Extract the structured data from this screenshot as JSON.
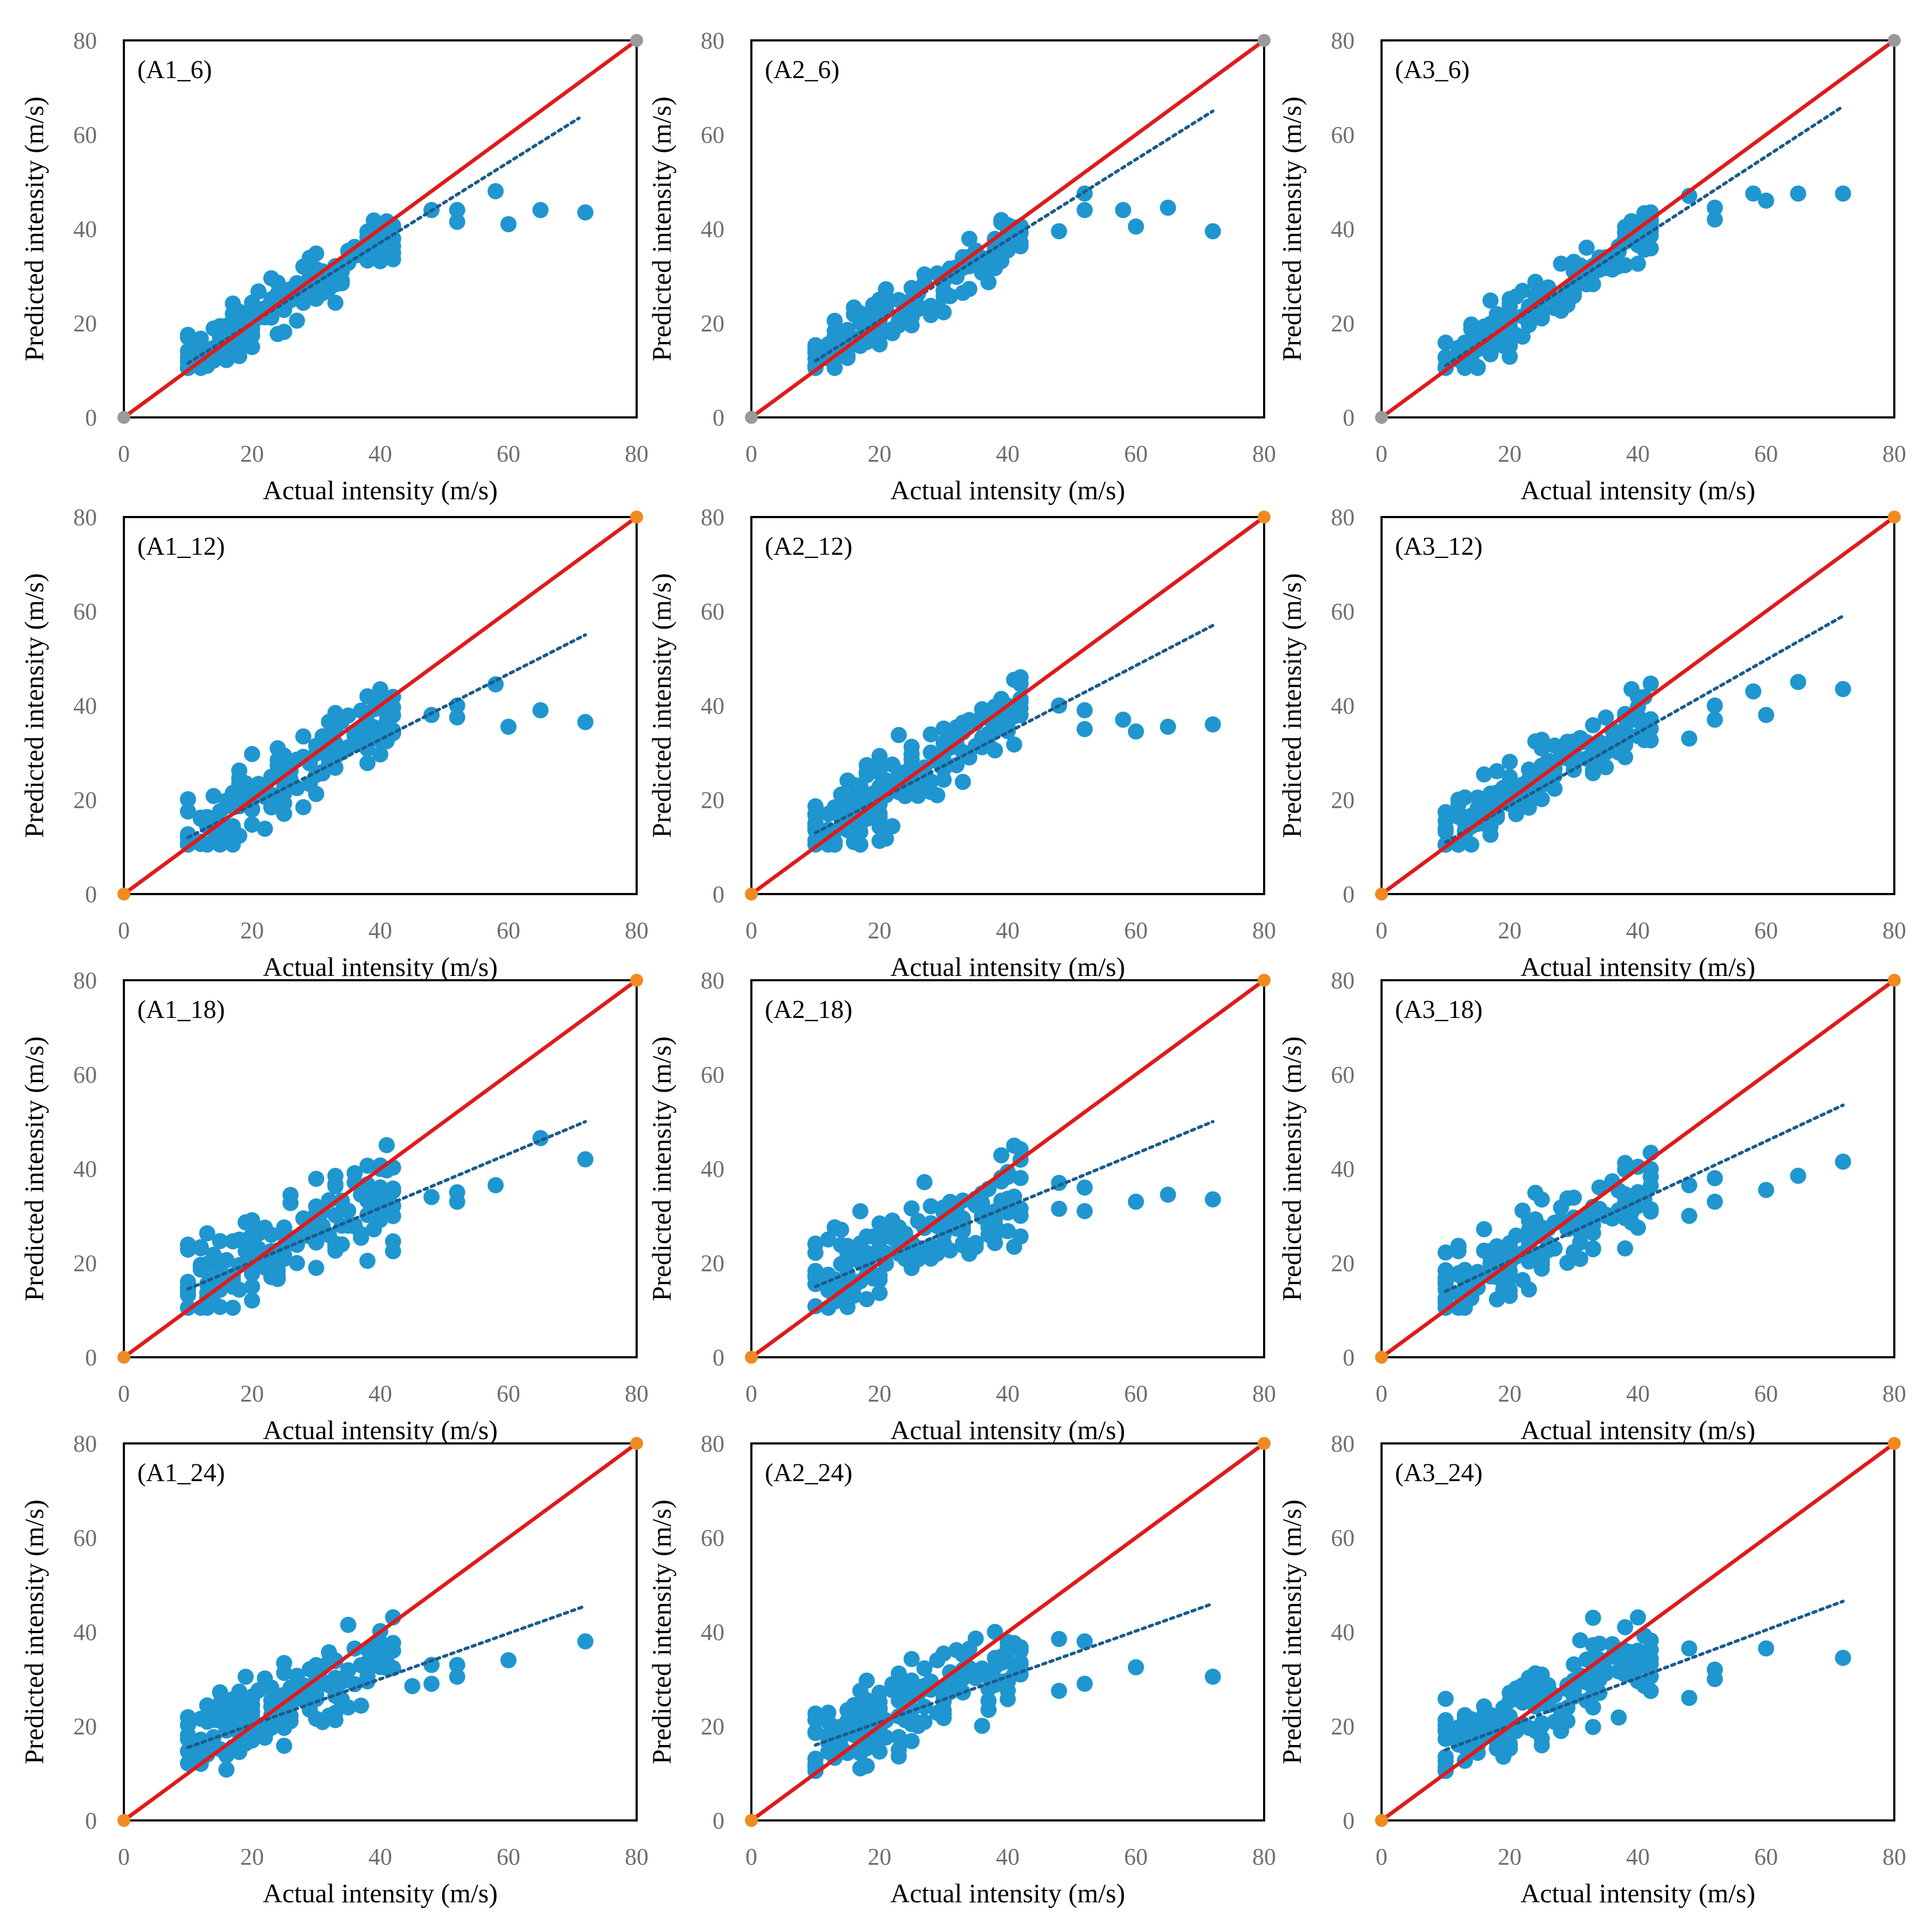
{
  "figure": {
    "colors": {
      "points": "#1f96d0",
      "trend": "#1b5c8c",
      "identity": "#e01a1a",
      "endpoint_gray": "#9a9a9a",
      "endpoint_orange": "#f08a20",
      "frame": "#000000"
    }
  },
  "chart_data": [
    {
      "type": "scatter",
      "title": "(A1_6)",
      "xlabel": "Actual intensity (m/s)",
      "ylabel": "Predicted intensity (m/s)",
      "xlim": [
        0,
        80
      ],
      "ylim": [
        0,
        80
      ],
      "xticks": [
        "0",
        "20",
        "40",
        "60",
        "80"
      ],
      "yticks": [
        "0",
        "20",
        "40",
        "60",
        "80"
      ],
      "grid": false,
      "marker_color": "gray",
      "identity_line": [
        [
          0,
          0
        ],
        [
          80,
          80
        ]
      ],
      "trend_line": [
        [
          10,
          11.5
        ],
        [
          71,
          63.5
        ]
      ],
      "bulk_slope": 0.85,
      "bulk_intercept": 3.0,
      "bulk_spread": 3.0,
      "outliers": [
        [
          58,
          48
        ],
        [
          60,
          41
        ],
        [
          65,
          44
        ],
        [
          72,
          43.5
        ],
        [
          52,
          44
        ],
        [
          52,
          41.5
        ],
        [
          48,
          44
        ]
      ]
    },
    {
      "type": "scatter",
      "title": "(A2_6)",
      "xlabel": "Actual intensity (m/s)",
      "ylabel": "Predicted intensity (m/s)",
      "xlim": [
        0,
        80
      ],
      "ylim": [
        0,
        80
      ],
      "xticks": [
        "0",
        "20",
        "40",
        "60",
        "80"
      ],
      "yticks": [
        "0",
        "20",
        "40",
        "60",
        "80"
      ],
      "grid": false,
      "marker_color": "gray",
      "identity_line": [
        [
          0,
          0
        ],
        [
          80,
          80
        ]
      ],
      "trend_line": [
        [
          10,
          12
        ],
        [
          72,
          65
        ]
      ],
      "bulk_slope": 0.85,
      "bulk_intercept": 3.0,
      "bulk_spread": 2.8,
      "outliers": [
        [
          58,
          44
        ],
        [
          60,
          40.5
        ],
        [
          65,
          44.5
        ],
        [
          72,
          39.5
        ],
        [
          52,
          44
        ],
        [
          52,
          47.5
        ],
        [
          48,
          39.5
        ]
      ]
    },
    {
      "type": "scatter",
      "title": "(A3_6)",
      "xlabel": "Actual intensity (m/s)",
      "ylabel": "Predicted intensity (m/s)",
      "xlim": [
        0,
        80
      ],
      "ylim": [
        0,
        80
      ],
      "xticks": [
        "0",
        "20",
        "40",
        "60",
        "80"
      ],
      "yticks": [
        "0",
        "20",
        "40",
        "60",
        "80"
      ],
      "grid": false,
      "marker_color": "gray",
      "identity_line": [
        [
          0,
          0
        ],
        [
          80,
          80
        ]
      ],
      "trend_line": [
        [
          10,
          11
        ],
        [
          72,
          66
        ]
      ],
      "bulk_slope": 0.88,
      "bulk_intercept": 2.5,
      "bulk_spread": 2.8,
      "outliers": [
        [
          58,
          47.5
        ],
        [
          60,
          46
        ],
        [
          65,
          47.5
        ],
        [
          72,
          47.5
        ],
        [
          52,
          42
        ],
        [
          52,
          44.5
        ],
        [
          48,
          47
        ]
      ]
    },
    {
      "type": "scatter",
      "title": "(A1_12)",
      "xlabel": "Actual intensity (m/s)",
      "ylabel": "Predicted intensity (m/s)",
      "xlim": [
        0,
        80
      ],
      "ylim": [
        0,
        80
      ],
      "xticks": [
        "0",
        "20",
        "40",
        "60",
        "80"
      ],
      "yticks": [
        "0",
        "20",
        "40",
        "60",
        "80"
      ],
      "grid": false,
      "marker_color": "orange",
      "identity_line": [
        [
          0,
          0
        ],
        [
          80,
          80
        ]
      ],
      "trend_line": [
        [
          10,
          12
        ],
        [
          72,
          55
        ]
      ],
      "bulk_slope": 0.82,
      "bulk_intercept": 4.0,
      "bulk_spread": 4.0,
      "outliers": [
        [
          58,
          44.5
        ],
        [
          60,
          35.5
        ],
        [
          65,
          39
        ],
        [
          72,
          36.5
        ],
        [
          52,
          40
        ],
        [
          52,
          37.5
        ],
        [
          48,
          38
        ]
      ]
    },
    {
      "type": "scatter",
      "title": "(A2_12)",
      "xlabel": "Actual intensity (m/s)",
      "ylabel": "Predicted intensity (m/s)",
      "xlim": [
        0,
        80
      ],
      "ylim": [
        0,
        80
      ],
      "xticks": [
        "0",
        "20",
        "40",
        "60",
        "80"
      ],
      "yticks": [
        "0",
        "20",
        "40",
        "60",
        "80"
      ],
      "grid": false,
      "marker_color": "orange",
      "identity_line": [
        [
          0,
          0
        ],
        [
          80,
          80
        ]
      ],
      "trend_line": [
        [
          10,
          13
        ],
        [
          72,
          57
        ]
      ],
      "bulk_slope": 0.8,
      "bulk_intercept": 5.0,
      "bulk_spread": 4.0,
      "outliers": [
        [
          58,
          37
        ],
        [
          60,
          34.5
        ],
        [
          65,
          35.5
        ],
        [
          72,
          36
        ],
        [
          52,
          39
        ],
        [
          52,
          35
        ],
        [
          48,
          40
        ]
      ]
    },
    {
      "type": "scatter",
      "title": "(A3_12)",
      "xlabel": "Actual intensity (m/s)",
      "ylabel": "Predicted intensity (m/s)",
      "xlim": [
        0,
        80
      ],
      "ylim": [
        0,
        80
      ],
      "xticks": [
        "0",
        "20",
        "40",
        "60",
        "80"
      ],
      "yticks": [
        "0",
        "20",
        "40",
        "60",
        "80"
      ],
      "grid": false,
      "marker_color": "orange",
      "identity_line": [
        [
          0,
          0
        ],
        [
          80,
          80
        ]
      ],
      "trend_line": [
        [
          10,
          11
        ],
        [
          72,
          59
        ]
      ],
      "bulk_slope": 0.82,
      "bulk_intercept": 4.0,
      "bulk_spread": 3.6,
      "outliers": [
        [
          58,
          43
        ],
        [
          60,
          38
        ],
        [
          65,
          45
        ],
        [
          72,
          43.5
        ],
        [
          52,
          40
        ],
        [
          52,
          37
        ],
        [
          48,
          33
        ]
      ]
    },
    {
      "type": "scatter",
      "title": "(A1_18)",
      "xlabel": "Actual intensity (m/s)",
      "ylabel": "Predicted intensity (m/s)",
      "xlim": [
        0,
        80
      ],
      "ylim": [
        0,
        80
      ],
      "xticks": [
        "0",
        "20",
        "40",
        "60",
        "80"
      ],
      "yticks": [
        "0",
        "20",
        "40",
        "60",
        "80"
      ],
      "grid": false,
      "marker_color": "orange",
      "identity_line": [
        [
          0,
          0
        ],
        [
          80,
          80
        ]
      ],
      "trend_line": [
        [
          10,
          14.5
        ],
        [
          72,
          50
        ]
      ],
      "bulk_slope": 0.62,
      "bulk_intercept": 9.0,
      "bulk_spread": 4.8,
      "outliers": [
        [
          58,
          36.5
        ],
        [
          65,
          46.5
        ],
        [
          72,
          42
        ],
        [
          52,
          35
        ],
        [
          52,
          33
        ],
        [
          48,
          34
        ],
        [
          42,
          22.5
        ]
      ]
    },
    {
      "type": "scatter",
      "title": "(A2_18)",
      "xlabel": "Actual intensity (m/s)",
      "ylabel": "Predicted intensity (m/s)",
      "xlim": [
        0,
        80
      ],
      "ylim": [
        0,
        80
      ],
      "xticks": [
        "0",
        "20",
        "40",
        "60",
        "80"
      ],
      "yticks": [
        "0",
        "20",
        "40",
        "60",
        "80"
      ],
      "grid": false,
      "marker_color": "orange",
      "identity_line": [
        [
          0,
          0
        ],
        [
          80,
          80
        ]
      ],
      "trend_line": [
        [
          10,
          15
        ],
        [
          72,
          50
        ]
      ],
      "bulk_slope": 0.62,
      "bulk_intercept": 9.5,
      "bulk_spread": 4.5,
      "outliers": [
        [
          60,
          33
        ],
        [
          65,
          34.5
        ],
        [
          72,
          33.5
        ],
        [
          52,
          36
        ],
        [
          52,
          31
        ],
        [
          48,
          37
        ],
        [
          48,
          31.5
        ]
      ]
    },
    {
      "type": "scatter",
      "title": "(A3_18)",
      "xlabel": "Actual intensity (m/s)",
      "ylabel": "Predicted intensity (m/s)",
      "xlim": [
        0,
        80
      ],
      "ylim": [
        0,
        80
      ],
      "xticks": [
        "0",
        "20",
        "40",
        "60",
        "80"
      ],
      "yticks": [
        "0",
        "20",
        "40",
        "60",
        "80"
      ],
      "grid": false,
      "marker_color": "orange",
      "identity_line": [
        [
          0,
          0
        ],
        [
          80,
          80
        ]
      ],
      "trend_line": [
        [
          10,
          14
        ],
        [
          72,
          53.5
        ]
      ],
      "bulk_slope": 0.7,
      "bulk_intercept": 7.0,
      "bulk_spread": 4.2,
      "outliers": [
        [
          60,
          35.5
        ],
        [
          65,
          38.5
        ],
        [
          72,
          41.5
        ],
        [
          52,
          38
        ],
        [
          52,
          33
        ],
        [
          48,
          36.5
        ],
        [
          48,
          30
        ]
      ]
    },
    {
      "type": "scatter",
      "title": "(A1_24)",
      "xlabel": "Actual intensity (m/s)",
      "ylabel": "Predicted intensity (m/s)",
      "xlim": [
        0,
        80
      ],
      "ylim": [
        0,
        80
      ],
      "xticks": [
        "0",
        "20",
        "40",
        "60",
        "80"
      ],
      "yticks": [
        "0",
        "20",
        "40",
        "60",
        "80"
      ],
      "grid": false,
      "marker_color": "orange",
      "identity_line": [
        [
          0,
          0
        ],
        [
          80,
          80
        ]
      ],
      "trend_line": [
        [
          10,
          15.5
        ],
        [
          72,
          45.5
        ]
      ],
      "bulk_slope": 0.55,
      "bulk_intercept": 11.0,
      "bulk_spread": 4.2,
      "outliers": [
        [
          60,
          34
        ],
        [
          72,
          38
        ],
        [
          52,
          33
        ],
        [
          52,
          30.5
        ],
        [
          48,
          33
        ],
        [
          48,
          29
        ],
        [
          45,
          28.5
        ],
        [
          35,
          41.5
        ]
      ]
    },
    {
      "type": "scatter",
      "title": "(A2_24)",
      "xlabel": "Actual intensity (m/s)",
      "ylabel": "Predicted intensity (m/s)",
      "xlim": [
        0,
        80
      ],
      "ylim": [
        0,
        80
      ],
      "xticks": [
        "0",
        "20",
        "40",
        "60",
        "80"
      ],
      "yticks": [
        "0",
        "20",
        "40",
        "60",
        "80"
      ],
      "grid": false,
      "marker_color": "orange",
      "identity_line": [
        [
          0,
          0
        ],
        [
          80,
          80
        ]
      ],
      "trend_line": [
        [
          10,
          16
        ],
        [
          72,
          46
        ]
      ],
      "bulk_slope": 0.55,
      "bulk_intercept": 11.0,
      "bulk_spread": 4.0,
      "outliers": [
        [
          60,
          32.5
        ],
        [
          72,
          30.5
        ],
        [
          52,
          38
        ],
        [
          52,
          29
        ],
        [
          48,
          38.5
        ],
        [
          48,
          27.5
        ],
        [
          38,
          40
        ]
      ]
    },
    {
      "type": "scatter",
      "title": "(A3_24)",
      "xlabel": "Actual intensity (m/s)",
      "ylabel": "Predicted intensity (m/s)",
      "xlim": [
        0,
        80
      ],
      "ylim": [
        0,
        80
      ],
      "xticks": [
        "0",
        "20",
        "40",
        "60",
        "80"
      ],
      "yticks": [
        "0",
        "20",
        "40",
        "60",
        "80"
      ],
      "grid": false,
      "marker_color": "orange",
      "identity_line": [
        [
          0,
          0
        ],
        [
          80,
          80
        ]
      ],
      "trend_line": [
        [
          10,
          15
        ],
        [
          72,
          46.5
        ]
      ],
      "bulk_slope": 0.55,
      "bulk_intercept": 11.0,
      "bulk_spread": 4.2,
      "outliers": [
        [
          60,
          36.5
        ],
        [
          72,
          34.5
        ],
        [
          52,
          32
        ],
        [
          52,
          30
        ],
        [
          48,
          36.5
        ],
        [
          48,
          26
        ],
        [
          33,
          43
        ],
        [
          38,
          41
        ]
      ]
    }
  ]
}
